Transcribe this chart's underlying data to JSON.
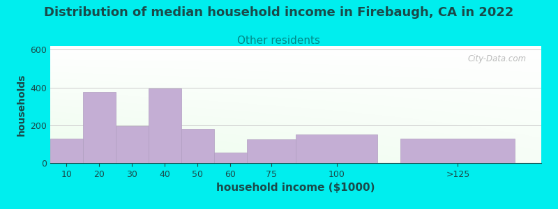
{
  "title": "Distribution of median household income in Firebaugh, CA in 2022",
  "subtitle": "Other residents",
  "xlabel": "household income ($1000)",
  "ylabel": "households",
  "title_fontsize": 13,
  "subtitle_fontsize": 11,
  "title_color": "#1a4a4a",
  "subtitle_color": "#008888",
  "label_color": "#1a4a4a",
  "tick_color": "#1a4a4a",
  "background_outer": "#00eeee",
  "bar_color": "#c4aed4",
  "bar_edge_color": "#b09ec0",
  "ylim": [
    0,
    620
  ],
  "yticks": [
    0,
    200,
    400,
    600
  ],
  "categories": [
    "10",
    "20",
    "30",
    "40",
    "50",
    "60",
    "75",
    "100",
    ">125"
  ],
  "values": [
    130,
    375,
    195,
    395,
    180,
    55,
    125,
    150,
    130
  ],
  "bar_lefts": [
    5,
    15,
    25,
    35,
    45,
    55,
    65,
    80,
    112
  ],
  "bar_widths": [
    10,
    10,
    10,
    10,
    10,
    10,
    15,
    25,
    35
  ],
  "xlim": [
    5,
    155
  ],
  "watermark": "© City-Data.com"
}
